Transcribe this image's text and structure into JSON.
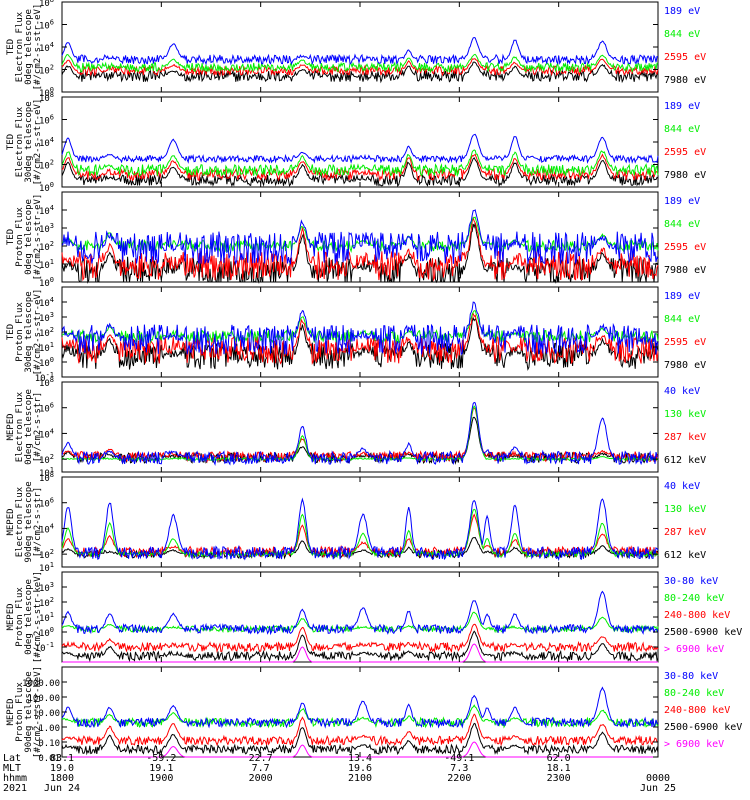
{
  "figure": {
    "colors": {
      "blue": "#0000ff",
      "red": "#ff0000",
      "green": "#00ee00",
      "black": "#000000",
      "magenta": "#ff00ff"
    },
    "x_axis": {
      "ticks": [
        "1800",
        "1900",
        "2000",
        "2100",
        "2200",
        "2300",
        "0000"
      ],
      "tick_hhmm": [
        1800,
        1900,
        2000,
        2100,
        2200,
        2300,
        2400
      ],
      "row_labels": [
        "Lat",
        "MLT",
        "hhmm",
        "2021"
      ],
      "lat_values": [
        "83.1",
        "-59.2",
        "22.7",
        "13.4",
        "-49.1",
        "62.0",
        ""
      ],
      "mlt_values": [
        "19.0",
        "19.1",
        "7.7",
        "19.6",
        "7.3",
        "18.1",
        ""
      ],
      "hhmm_values": [
        "1800",
        "1900",
        "2000",
        "2100",
        "2200",
        "2300",
        "0000"
      ],
      "date_values": [
        "Jun 24",
        "",
        "",
        "",
        "",
        "",
        "Jun 25"
      ]
    }
  },
  "chart_data": [
    {
      "type": "line",
      "panel": "TED 0deg electron",
      "ylabel": [
        "TED",
        "Electron Flux",
        "0deg telescope",
        "[#/cm2-s-str-eV]"
      ],
      "yscale": "log",
      "ylim_exp": [
        0,
        8
      ],
      "yticks": [
        {
          "v": 0,
          "t": "10^0"
        },
        {
          "v": 2,
          "t": "10^2"
        },
        {
          "v": 4,
          "t": "10^4"
        },
        {
          "v": 6,
          "t": "10^6"
        },
        {
          "v": 8,
          "t": "10^8"
        }
      ],
      "series": [
        {
          "name": "7980 eV",
          "color": "black",
          "base": 1.4,
          "noise": 0.5,
          "values": [
            2.3,
            1.0,
            1.9,
            2.0,
            0.9,
            2.3,
            2.6,
            0.7,
            2.2,
            2.4
          ]
        },
        {
          "name": "2595 eV",
          "color": "red",
          "base": 1.9,
          "noise": 0.4,
          "values": [
            2.8,
            1.4,
            2.4,
            2.4,
            1.3,
            2.7,
            3.0,
            1.1,
            2.6,
            2.9
          ]
        },
        {
          "name": "844 eV",
          "color": "green",
          "base": 2.2,
          "noise": 0.4,
          "values": [
            3.3,
            2.0,
            2.9,
            2.8,
            1.8,
            3.0,
            3.3,
            1.6,
            3.1,
            3.3
          ]
        },
        {
          "name": "189 eV",
          "color": "blue",
          "base": 2.9,
          "noise": 0.4,
          "values": [
            4.4,
            3.0,
            4.3,
            3.2,
            2.6,
            3.7,
            4.8,
            2.5,
            4.6,
            4.5
          ]
        }
      ]
    },
    {
      "type": "line",
      "panel": "TED 30deg electron",
      "ylabel": [
        "TED",
        "Electron Flux",
        "30deg telescope",
        "[#/cm2-s-str-eV]"
      ],
      "yscale": "log",
      "ylim_exp": [
        0,
        8
      ],
      "yticks": [
        {
          "v": 0,
          "t": "10^0"
        },
        {
          "v": 2,
          "t": "10^2"
        },
        {
          "v": 4,
          "t": "10^4"
        },
        {
          "v": 6,
          "t": "10^6"
        },
        {
          "v": 8,
          "t": "10^8"
        }
      ],
      "series": [
        {
          "name": "7980 eV",
          "color": "black",
          "base": 0.6,
          "noise": 0.5,
          "values": [
            2.1,
            0.8,
            1.8,
            1.9,
            0.7,
            2.2,
            2.5,
            0.6,
            2.1,
            2.3
          ]
        },
        {
          "name": "2595 eV",
          "color": "red",
          "base": 1.1,
          "noise": 0.5,
          "values": [
            2.6,
            1.2,
            2.3,
            2.3,
            1.2,
            2.6,
            2.9,
            1.0,
            2.5,
            2.8
          ]
        },
        {
          "name": "844 eV",
          "color": "green",
          "base": 1.5,
          "noise": 0.5,
          "values": [
            3.1,
            1.9,
            2.8,
            2.7,
            1.7,
            2.9,
            3.2,
            1.5,
            3.0,
            3.2
          ]
        },
        {
          "name": "189 eV",
          "color": "blue",
          "base": 2.5,
          "noise": 0.3,
          "values": [
            4.3,
            2.9,
            4.2,
            3.1,
            2.5,
            3.6,
            4.7,
            2.4,
            4.5,
            4.4
          ]
        }
      ]
    },
    {
      "type": "line",
      "panel": "TED 0deg proton",
      "ylabel": [
        "TED",
        "Proton Flux",
        "0deg telescope",
        "[#/cm2-s-str-eV]"
      ],
      "yscale": "log",
      "ylim_exp": [
        0,
        5
      ],
      "yticks": [
        {
          "v": 0,
          "t": "10^0"
        },
        {
          "v": 1,
          "t": "10^1"
        },
        {
          "v": 2,
          "t": "10^2"
        },
        {
          "v": 3,
          "t": "10^3"
        },
        {
          "v": 4,
          "t": "10^4"
        }
      ],
      "series": [
        {
          "name": "7980 eV",
          "color": "black",
          "base": 0.6,
          "noise": 0.8,
          "values": [
            0.8,
            1.6,
            0.6,
            2.6,
            0.7,
            1.4,
            3.2,
            0.6,
            0.8,
            1.5
          ]
        },
        {
          "name": "2595 eV",
          "color": "red",
          "base": 0.9,
          "noise": 0.8,
          "values": [
            1.2,
            2.0,
            0.8,
            2.9,
            1.0,
            1.7,
            3.5,
            0.9,
            1.0,
            1.8
          ]
        },
        {
          "name": "844 eV",
          "color": "green",
          "base": 2.0,
          "noise": 0.3,
          "values": [
            2.4,
            2.7,
            2.0,
            3.1,
            2.3,
            2.5,
            3.6,
            2.2,
            2.3,
            2.6
          ]
        },
        {
          "name": "189 eV",
          "color": "blue",
          "base": 1.9,
          "noise": 0.9,
          "values": [
            2.2,
            2.6,
            1.8,
            3.3,
            2.0,
            2.4,
            4.0,
            1.9,
            2.2,
            2.5
          ]
        }
      ]
    },
    {
      "type": "line",
      "panel": "TED 30deg proton",
      "ylabel": [
        "TED",
        "Proton Flux",
        "30deg telescope",
        "[#/cm2-s-str-eV]"
      ],
      "yscale": "log",
      "ylim_exp": [
        -1,
        5
      ],
      "yticks": [
        {
          "v": -1,
          "t": "10^-1"
        },
        {
          "v": 0,
          "t": "10^0"
        },
        {
          "v": 1,
          "t": "10^1"
        },
        {
          "v": 2,
          "t": "10^2"
        },
        {
          "v": 3,
          "t": "10^3"
        },
        {
          "v": 4,
          "t": "10^4"
        }
      ],
      "series": [
        {
          "name": "7980 eV",
          "color": "black",
          "base": 0.4,
          "noise": 0.9,
          "values": [
            0.6,
            1.5,
            0.5,
            2.4,
            0.6,
            1.3,
            2.9,
            0.5,
            0.7,
            1.4
          ]
        },
        {
          "name": "2595 eV",
          "color": "red",
          "base": 0.8,
          "noise": 0.9,
          "values": [
            1.0,
            1.8,
            0.7,
            2.7,
            0.9,
            1.6,
            3.2,
            0.8,
            0.9,
            1.7
          ]
        },
        {
          "name": "844 eV",
          "color": "green",
          "base": 1.7,
          "noise": 0.4,
          "values": [
            1.9,
            2.3,
            1.7,
            3.0,
            1.9,
            2.1,
            3.4,
            1.8,
            1.9,
            2.2
          ]
        },
        {
          "name": "189 eV",
          "color": "blue",
          "base": 1.5,
          "noise": 1.0,
          "values": [
            1.9,
            2.4,
            1.6,
            3.4,
            1.8,
            2.2,
            3.9,
            1.7,
            2.0,
            2.3
          ]
        }
      ]
    },
    {
      "type": "line",
      "panel": "MEPED 0deg electron",
      "ylabel": [
        "MEPED",
        "Electron Flux",
        "0deg telescope",
        "[#/cm2-s-str]"
      ],
      "yscale": "log",
      "ylim_exp": [
        1,
        8
      ],
      "yticks": [
        {
          "v": 1,
          "t": "10^1"
        },
        {
          "v": 2,
          "t": "10^2"
        },
        {
          "v": 4,
          "t": "10^4"
        },
        {
          "v": 6,
          "t": "10^6"
        },
        {
          "v": 8,
          "t": "10^8"
        }
      ],
      "series": [
        {
          "name": "612 keV",
          "color": "black",
          "base": 2.1,
          "noise": 0.4,
          "values": [
            2.5,
            2.3,
            2.2,
            3.0,
            2.2,
            2.4,
            5.3,
            2.2,
            2.2,
            2.4
          ]
        },
        {
          "name": "287 keV",
          "color": "red",
          "base": 2.2,
          "noise": 0.4,
          "values": [
            2.6,
            2.8,
            2.3,
            3.6,
            2.3,
            2.5,
            6.0,
            2.3,
            2.3,
            2.6
          ]
        },
        {
          "name": "130 keV",
          "color": "green",
          "base": 2.0,
          "noise": 0.1,
          "values": [
            2.0,
            2.0,
            2.0,
            3.8,
            2.0,
            2.1,
            6.1,
            2.0,
            2.0,
            2.2
          ]
        },
        {
          "name": "40 keV",
          "color": "blue",
          "base": 2.1,
          "noise": 0.5,
          "values": [
            3.3,
            2.6,
            2.6,
            4.5,
            2.8,
            3.2,
            6.5,
            2.7,
            2.9,
            5.2
          ]
        }
      ]
    },
    {
      "type": "line",
      "panel": "MEPED 90deg electron",
      "ylabel": [
        "MEPED",
        "Electron Flux",
        "90deg telescope",
        "[#/cm2-s-str]"
      ],
      "yscale": "log",
      "ylim_exp": [
        1,
        8
      ],
      "yticks": [
        {
          "v": 1,
          "t": "10^1"
        },
        {
          "v": 2,
          "t": "10^2"
        },
        {
          "v": 4,
          "t": "10^4"
        },
        {
          "v": 6,
          "t": "10^6"
        },
        {
          "v": 8,
          "t": "10^8"
        }
      ],
      "series": [
        {
          "name": "612 keV",
          "color": "black",
          "base": 2.0,
          "noise": 0.3,
          "values": [
            2.4,
            2.2,
            2.3,
            3.0,
            2.3,
            2.5,
            3.3,
            2.2,
            2.5,
            2.6
          ]
        },
        {
          "name": "287 keV",
          "color": "red",
          "base": 2.2,
          "noise": 0.4,
          "values": [
            3.2,
            3.4,
            2.6,
            4.2,
            2.9,
            3.2,
            5.0,
            2.7,
            3.1,
            3.6
          ]
        },
        {
          "name": "130 keV",
          "color": "green",
          "base": 2.0,
          "noise": 0.2,
          "values": [
            4.0,
            4.4,
            3.2,
            5.1,
            3.6,
            3.8,
            5.5,
            3.2,
            3.6,
            4.4
          ]
        },
        {
          "name": "40 keV",
          "color": "blue",
          "base": 2.1,
          "noise": 0.5,
          "values": [
            5.7,
            6.0,
            5.0,
            6.2,
            5.1,
            5.6,
            6.2,
            4.9,
            5.8,
            6.3
          ]
        }
      ]
    },
    {
      "type": "line",
      "panel": "MEPED 0deg proton",
      "ylabel": [
        "MEPED",
        "Proton Flux",
        "0deg telescope",
        "[#/cm2-s-str-keV]"
      ],
      "yscale": "log",
      "ylim_exp": [
        -2,
        4
      ],
      "yticks": [
        {
          "v": -1,
          "t": "10^-1"
        },
        {
          "v": 0,
          "t": "10^0"
        },
        {
          "v": 1,
          "t": "10^1"
        },
        {
          "v": 2,
          "t": "10^2"
        },
        {
          "v": 3,
          "t": "10^3"
        }
      ],
      "series": [
        {
          "name": "> 6900 keV",
          "color": "magenta",
          "base": -2.0,
          "noise": 0.0,
          "values": [
            -2,
            -2,
            -2,
            -1.0,
            -2,
            -2,
            -0.8,
            -2,
            -2,
            -2
          ]
        },
        {
          "name": "2500-6900 keV",
          "color": "black",
          "base": -1.6,
          "noise": 0.3,
          "values": [
            -1.4,
            -1.0,
            -1.5,
            -0.2,
            -1.4,
            -1.3,
            0.0,
            -1.5,
            -1.4,
            -0.8
          ]
        },
        {
          "name": "240-800 keV",
          "color": "red",
          "base": -1.0,
          "noise": 0.3,
          "values": [
            -0.9,
            -0.5,
            -1.0,
            0.3,
            -0.9,
            -0.8,
            0.5,
            -1.0,
            -0.9,
            -0.3
          ]
        },
        {
          "name": "80-240 keV",
          "color": "green",
          "base": 0.2,
          "noise": 0.2,
          "values": [
            0.4,
            0.5,
            0.3,
            0.9,
            0.3,
            0.4,
            1.3,
            0.2,
            0.3,
            1.0
          ]
        },
        {
          "name": "30-80 keV",
          "color": "blue",
          "base": 0.2,
          "noise": 0.3,
          "values": [
            1.3,
            1.2,
            1.2,
            1.5,
            1.6,
            1.4,
            2.1,
            1.2,
            1.2,
            2.7
          ]
        }
      ]
    },
    {
      "type": "line",
      "panel": "MEPED 90deg proton",
      "ylabel": [
        "MEPED",
        "Proton Flux",
        "90deg telescope",
        "[#/cm2-s-str-keV]"
      ],
      "yscale": "log",
      "ylim_exp": [
        -2,
        4
      ],
      "yticks": [
        {
          "v": -2,
          "t": "0.01"
        },
        {
          "v": -1,
          "t": "0.10"
        },
        {
          "v": 0,
          "t": "1.00"
        },
        {
          "v": 1,
          "t": "10.00"
        },
        {
          "v": 2,
          "t": "100.00"
        },
        {
          "v": 3,
          "t": "1000.00"
        }
      ],
      "series": [
        {
          "name": "> 6900 keV",
          "color": "magenta",
          "base": -2.0,
          "noise": 0.0,
          "values": [
            -2,
            -2,
            -1.3,
            -1.2,
            -2,
            -2,
            -1.0,
            -2,
            -2,
            -2
          ]
        },
        {
          "name": "2500-6900 keV",
          "color": "black",
          "base": -1.5,
          "noise": 0.3,
          "values": [
            -1.3,
            -0.6,
            -0.5,
            0.0,
            -1.2,
            -0.9,
            0.2,
            -1.3,
            -1.2,
            -0.4
          ]
        },
        {
          "name": "240-800 keV",
          "color": "red",
          "base": -0.9,
          "noise": 0.3,
          "values": [
            -0.7,
            0.0,
            0.2,
            0.6,
            -0.6,
            -0.3,
            0.8,
            -0.7,
            -0.6,
            0.2
          ]
        },
        {
          "name": "80-240 keV",
          "color": "green",
          "base": 0.3,
          "noise": 0.3,
          "values": [
            0.5,
            0.8,
            0.9,
            1.2,
            0.6,
            0.7,
            1.4,
            0.5,
            0.6,
            1.1
          ]
        },
        {
          "name": "30-80 keV",
          "color": "blue",
          "base": 0.3,
          "noise": 0.3,
          "values": [
            1.3,
            1.3,
            1.4,
            1.6,
            1.7,
            1.5,
            2.1,
            1.3,
            1.3,
            2.6
          ]
        }
      ]
    }
  ]
}
